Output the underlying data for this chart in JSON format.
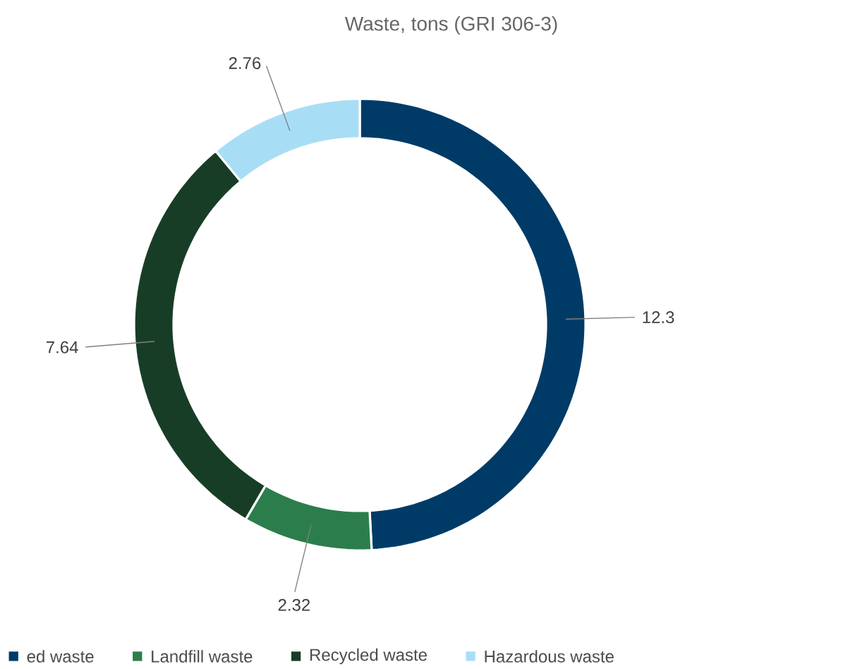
{
  "chart_data": {
    "type": "donut",
    "title": "Waste, tons (GRI 306-3)",
    "categories": [
      "ed waste",
      "Landfill waste",
      "Recycled waste",
      "Hazardous waste"
    ],
    "values": [
      12.3,
      2.32,
      7.64,
      2.76
    ],
    "colors": [
      "#003b67",
      "#2b7e4c",
      "#183d27",
      "#a8def5"
    ],
    "data_labels": true,
    "legend": "bottom"
  }
}
